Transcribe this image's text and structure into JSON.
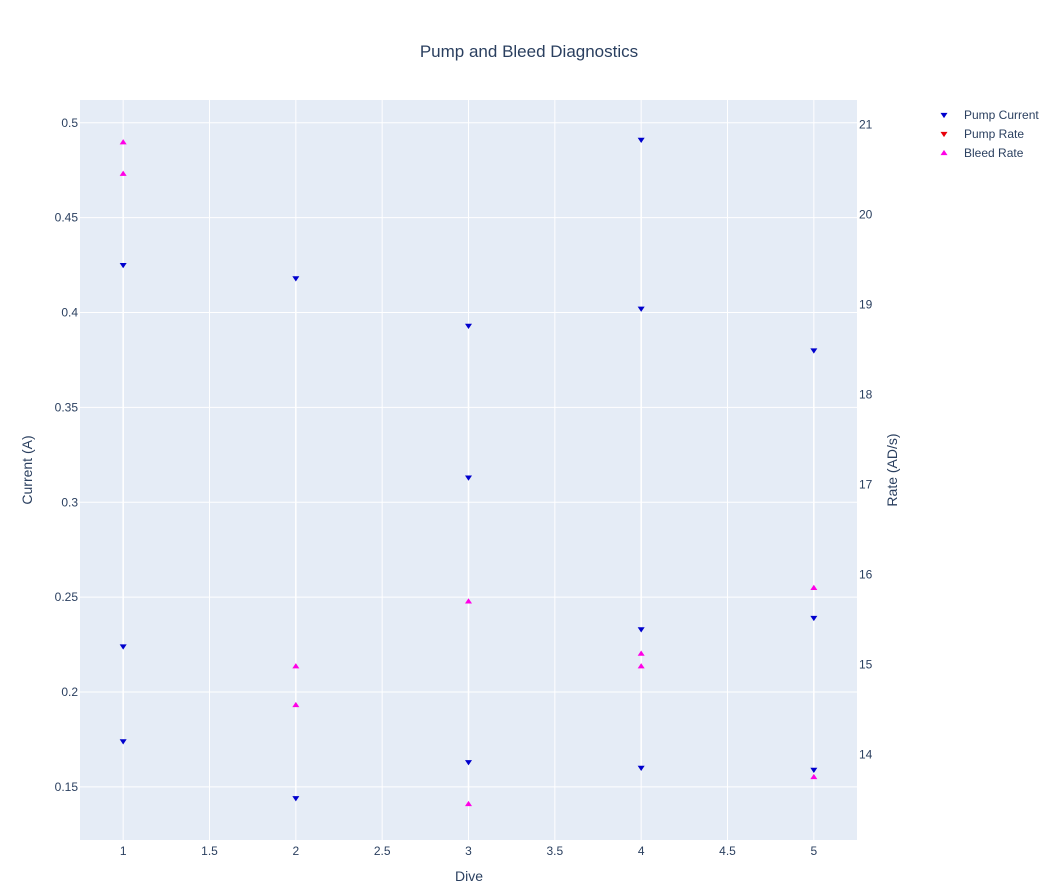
{
  "chart_data": {
    "type": "scatter",
    "title": "Pump and Bleed Diagnostics",
    "xlabel": "Dive",
    "ylabel_left": "Current (A)",
    "ylabel_right": "Rate (AD/s)",
    "xlim": [
      0.75,
      5.25
    ],
    "ylim_left": [
      0.122,
      0.512
    ],
    "ylim_right": [
      13.05,
      21.27
    ],
    "x_ticks": [
      "1",
      "1.5",
      "2",
      "2.5",
      "3",
      "3.5",
      "4",
      "4.5",
      "5"
    ],
    "y_ticks_left": [
      "0.15",
      "0.2",
      "0.25",
      "0.3",
      "0.35",
      "0.4",
      "0.45",
      "0.5"
    ],
    "y_ticks_right": [
      "14",
      "15",
      "16",
      "17",
      "18",
      "19",
      "20",
      "21"
    ],
    "grid": true,
    "legend_position": "top-right",
    "series": [
      {
        "name": "Pump Current",
        "axis": "left",
        "marker": "triangle-down",
        "color": "#0000cd",
        "x": [
          1,
          1,
          1,
          2,
          2,
          3,
          3,
          3,
          4,
          4,
          4,
          4,
          5,
          5,
          5
        ],
        "y": [
          0.425,
          0.224,
          0.174,
          0.418,
          0.144,
          0.393,
          0.313,
          0.163,
          0.491,
          0.402,
          0.233,
          0.16,
          0.38,
          0.239,
          0.159
        ]
      },
      {
        "name": "Pump Rate",
        "axis": "right",
        "marker": "triangle-down",
        "color": "#e8000b",
        "x": [],
        "y": []
      },
      {
        "name": "Bleed Rate",
        "axis": "right",
        "marker": "triangle-up",
        "color": "#ff00e6",
        "x": [
          1,
          1,
          2,
          2,
          3,
          3,
          4,
          4,
          5,
          5
        ],
        "y": [
          20.8,
          20.45,
          14.98,
          14.55,
          15.7,
          13.45,
          15.12,
          14.98,
          15.85,
          13.75
        ]
      }
    ]
  }
}
